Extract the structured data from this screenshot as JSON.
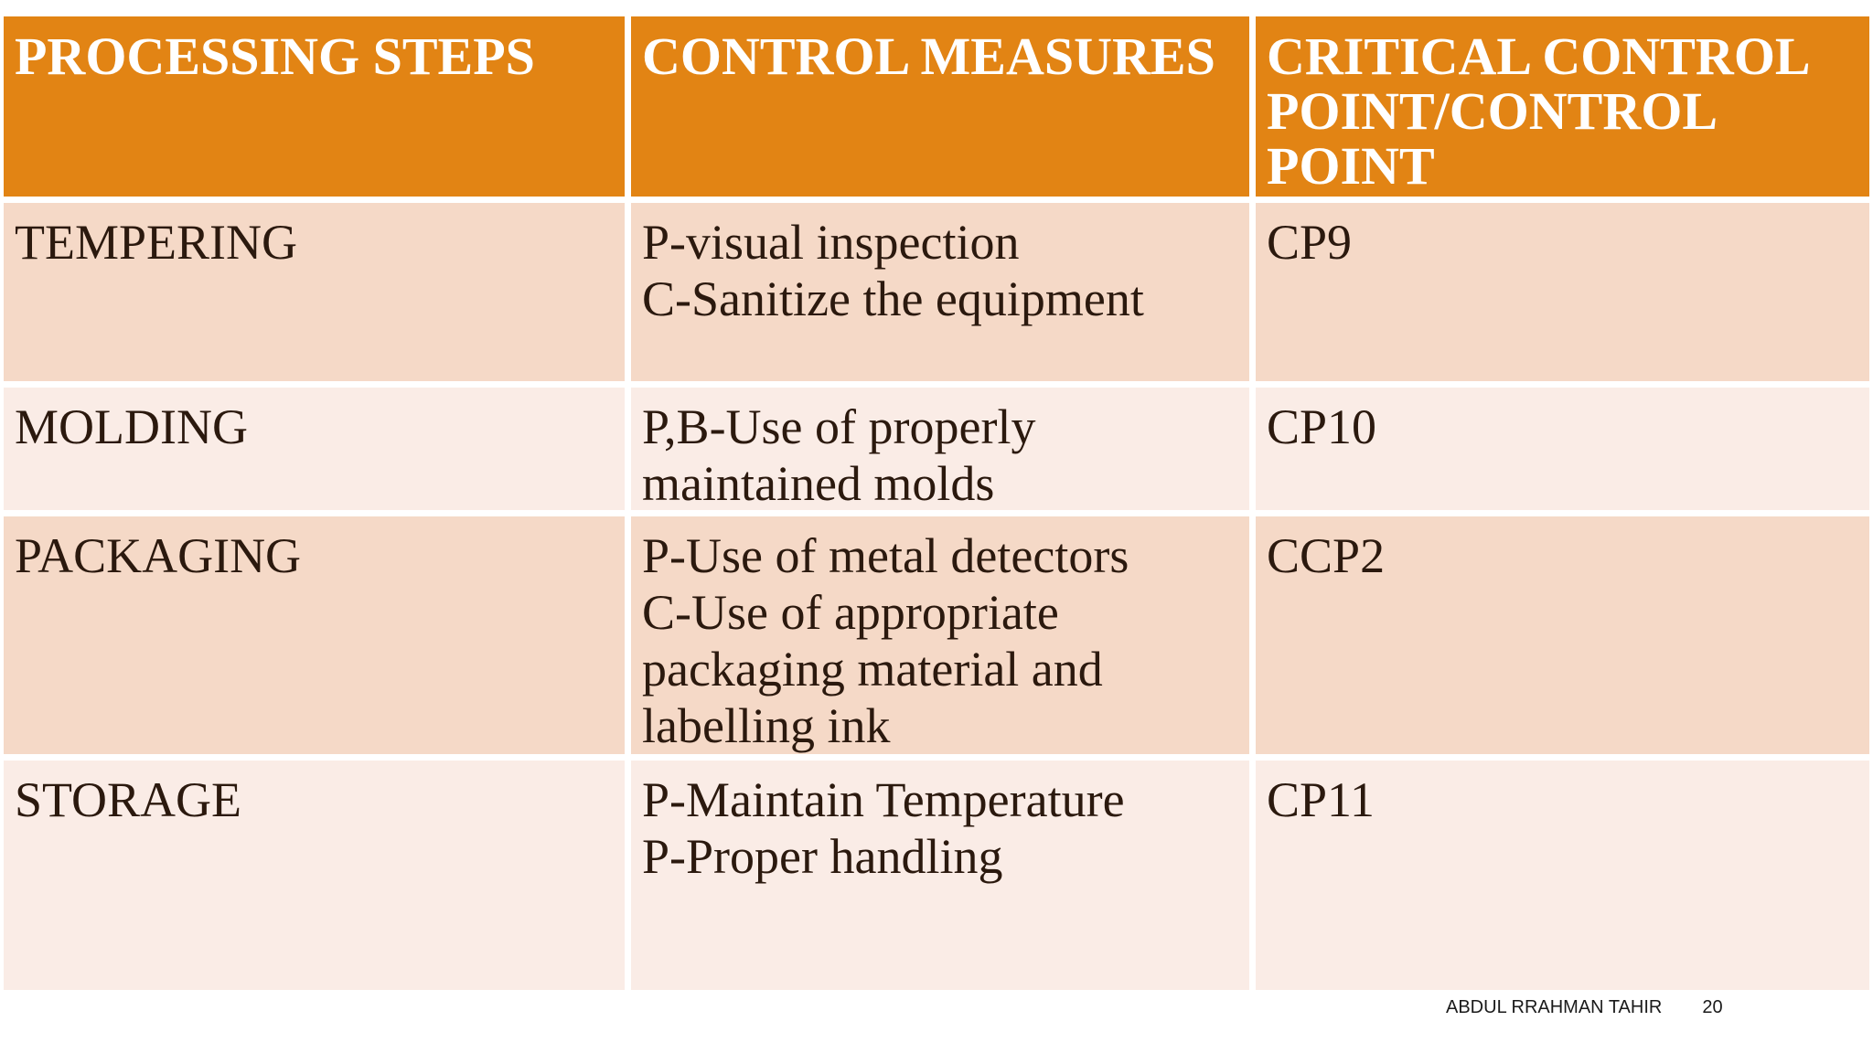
{
  "table": {
    "headers": [
      "PROCESSING STEPS",
      "CONTROL MEASURES",
      "CRITICAL CONTROL POINT/CONTROL POINT"
    ],
    "rows": [
      {
        "step": "TEMPERING",
        "measures": [
          "P-visual inspection",
          "C-Sanitize the equipment"
        ],
        "ccp": "CP9"
      },
      {
        "step": "MOLDING",
        "measures": [
          "P,B-Use of properly maintained molds"
        ],
        "ccp": "CP10"
      },
      {
        "step": "PACKAGING",
        "measures": [
          "P-Use of metal detectors",
          "C-Use of appropriate packaging material and labelling ink"
        ],
        "ccp": "CCP2"
      },
      {
        "step": "STORAGE",
        "measures": [
          "P-Maintain Temperature",
          "P-Proper handling"
        ],
        "ccp": "CP11"
      }
    ]
  },
  "footer": {
    "author": "ABDUL RRAHMAN TAHIR",
    "page_number": "20"
  },
  "colors": {
    "page_bg": "#FFFFFF",
    "header_bg": "#E28414",
    "header_text": "#FFFFFF",
    "band_dark": "#F5D9C7",
    "band_light": "#FAECE6",
    "body_text": "#2B190E",
    "footer_text": "#1A1A1A"
  }
}
